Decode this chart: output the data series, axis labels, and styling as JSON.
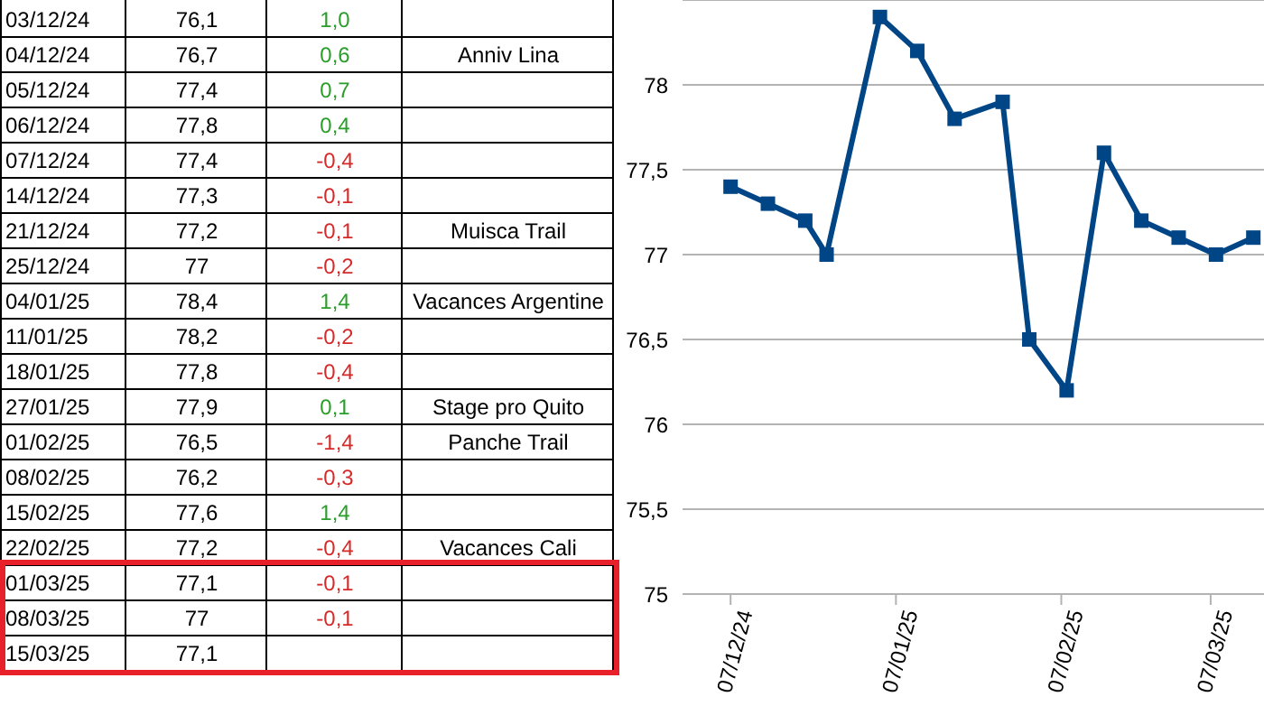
{
  "chart_data": [
    {
      "type": "heatmap",
      "categories": [
        null,
        null,
        null
      ],
      "y_categories": [
        "03/12/24",
        "04/12/24",
        "05/12/24",
        "06/12/24",
        "07/12/24",
        "14/12/24",
        "21/12/24",
        "25/12/24",
        "04/01/25",
        "11/01/25",
        "18/01/25",
        "27/01/25",
        "01/02/25",
        "08/02/25",
        "15/02/25",
        "22/02/25",
        "01/03/25",
        "08/03/25",
        "15/03/25"
      ],
      "cells": [
        [
          null,
          1.0,
          null
        ],
        [
          null,
          0.6,
          null
        ],
        [
          null,
          0.7,
          null
        ],
        [
          null,
          0.4,
          null
        ],
        [
          null,
          -0.4,
          null
        ],
        [
          null,
          -0.1,
          null
        ],
        [
          null,
          -0.1,
          null
        ],
        [
          null,
          -0.2,
          null
        ],
        [
          null,
          1.4,
          null
        ],
        [
          null,
          -0.2,
          null
        ],
        [
          null,
          -0.4,
          null
        ],
        [
          null,
          0.1,
          null
        ],
        [
          null,
          -1.4,
          null
        ],
        [
          null,
          -0.3,
          null
        ],
        [
          null,
          1.4,
          null
        ],
        [
          null,
          -0.4,
          null
        ],
        [
          null,
          -0.1,
          null
        ],
        [
          null,
          -0.1,
          null
        ],
        [
          null,
          null,
          null
        ]
      ],
      "cell_labels": [
        [
          "76,1",
          "1,0",
          null
        ],
        [
          "76,7",
          "0,6",
          "Anniv Lina"
        ],
        [
          "77,4",
          "0,7",
          null
        ],
        [
          "77,8",
          "0,4",
          null
        ],
        [
          "77,4",
          "-0,4",
          null
        ],
        [
          "77,3",
          "-0,1",
          null
        ],
        [
          "77,2",
          "-0,1",
          "Muisca Trail"
        ],
        [
          "77",
          "-0,2",
          null
        ],
        [
          "78,4",
          "1,4",
          "Vacances Argentine"
        ],
        [
          "78,2",
          "-0,2",
          null
        ],
        [
          "77,8",
          "-0,4",
          null
        ],
        [
          "77,9",
          "0,1",
          "Stage pro Quito"
        ],
        [
          "76,5",
          "-1,4",
          "Panche Trail"
        ],
        [
          "76,2",
          "-0,3",
          null
        ],
        [
          "77,6",
          "1,4",
          null
        ],
        [
          "77,2",
          "-0,4",
          "Vacances Cali"
        ],
        [
          "77,1",
          "-0,1",
          null
        ],
        [
          "77",
          "-0,1",
          null
        ],
        [
          "77,1",
          null,
          null
        ]
      ]
    },
    {
      "type": "line",
      "x": [
        "2024-12-07",
        "2024-12-14",
        "2024-12-21",
        "2024-12-25",
        "2025-01-04",
        "2025-01-11",
        "2025-01-18",
        "2025-01-27",
        "2025-02-01",
        "2025-02-08",
        "2025-02-15",
        "2025-02-22",
        "2025-03-01",
        "2025-03-08",
        "2025-03-15"
      ],
      "series": [
        {
          "color": "#004586",
          "values": [
            77.4,
            77.3,
            77.2,
            77,
            78.4,
            78.2,
            77.8,
            77.9,
            76.5,
            76.2,
            77.6,
            77.2,
            77.1,
            77,
            77.1
          ]
        }
      ],
      "xlim": [
        "2024-11-28",
        "2025-03-17"
      ],
      "xticks": [
        {
          "value": "2024-12-07",
          "label": "07/12/24"
        },
        {
          "value": "2025-01-07",
          "label": "07/01/25"
        },
        {
          "value": "2025-02-07",
          "label": "07/02/25"
        },
        {
          "value": "2025-03-07",
          "label": "07/03/25"
        }
      ],
      "ylim": [
        75,
        78.5
      ],
      "yticks": [
        75,
        {
          "value": 75.5,
          "label": "75,5"
        },
        76,
        {
          "value": 76.5,
          "label": "76,5"
        },
        77,
        {
          "value": 77.5,
          "label": "77,5"
        },
        78
      ],
      "grid": "y",
      "marker": "square",
      "line_style": "solid",
      "legend": false
    }
  ]
}
